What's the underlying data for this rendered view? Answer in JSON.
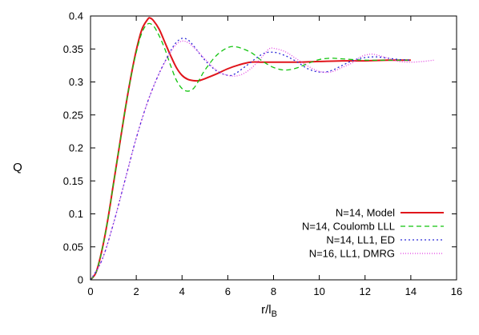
{
  "chart_data": {
    "type": "line",
    "xlabel": "r/l",
    "xlabel_sub": "B",
    "ylabel": "Q",
    "xlim": [
      0,
      16
    ],
    "ylim": [
      0,
      0.4
    ],
    "xticks": [
      0,
      2,
      4,
      6,
      8,
      10,
      12,
      14,
      16
    ],
    "yticks": [
      0,
      0.05,
      0.1,
      0.15,
      0.2,
      0.25,
      0.3,
      0.35,
      0.4
    ],
    "xtick_labels": [
      "0",
      "2",
      "4",
      "6",
      "8",
      "10",
      "12",
      "14",
      "16"
    ],
    "ytick_labels": [
      "0",
      "0.05",
      "0.1",
      "0.15",
      "0.2",
      "0.25",
      "0.3",
      "0.35",
      "0.4"
    ],
    "grid": false,
    "legend_position": "bottom-right",
    "series": [
      {
        "name": "N=14, Model",
        "color": "#e0151b",
        "dash": "solid",
        "x": [
          0,
          0.25,
          0.5,
          0.75,
          1.0,
          1.25,
          1.5,
          1.75,
          2.0,
          2.25,
          2.5,
          2.6,
          2.75,
          3.0,
          3.25,
          3.5,
          3.75,
          4.0,
          4.25,
          4.5,
          4.75,
          5.0,
          5.5,
          6.0,
          6.5,
          7.0,
          7.5,
          8.0,
          9.0,
          10.0,
          11.0,
          12.0,
          13.0,
          14.0
        ],
        "y": [
          0,
          0.012,
          0.045,
          0.09,
          0.145,
          0.2,
          0.255,
          0.305,
          0.348,
          0.38,
          0.395,
          0.397,
          0.393,
          0.38,
          0.36,
          0.34,
          0.322,
          0.31,
          0.304,
          0.302,
          0.302,
          0.305,
          0.312,
          0.32,
          0.326,
          0.33,
          0.33,
          0.33,
          0.33,
          0.331,
          0.332,
          0.332,
          0.333,
          0.333
        ]
      },
      {
        "name": "N=14, Coulomb LLL",
        "color": "#12c40f",
        "dash": "6,4",
        "x": [
          0,
          0.25,
          0.5,
          0.75,
          1.0,
          1.25,
          1.5,
          1.75,
          2.0,
          2.25,
          2.5,
          2.75,
          3.0,
          3.25,
          3.5,
          3.75,
          4.0,
          4.25,
          4.5,
          4.75,
          5.0,
          5.5,
          6.0,
          6.4,
          7.0,
          7.5,
          8.0,
          8.5,
          9.0,
          9.5,
          10.0,
          10.5,
          11.0,
          12.0,
          13.0,
          14.0
        ],
        "y": [
          0,
          0.012,
          0.045,
          0.09,
          0.145,
          0.2,
          0.255,
          0.305,
          0.345,
          0.375,
          0.388,
          0.385,
          0.37,
          0.35,
          0.325,
          0.303,
          0.29,
          0.286,
          0.29,
          0.303,
          0.318,
          0.34,
          0.352,
          0.353,
          0.345,
          0.332,
          0.322,
          0.318,
          0.321,
          0.328,
          0.334,
          0.336,
          0.335,
          0.333,
          0.333,
          0.333
        ]
      },
      {
        "name": "N=14, LL1, ED",
        "color": "#2a2ad8",
        "dash": "2,3",
        "x": [
          0,
          0.5,
          1.0,
          1.5,
          2.0,
          2.5,
          3.0,
          3.5,
          3.75,
          4.0,
          4.25,
          4.5,
          5.0,
          5.5,
          6.0,
          6.3,
          6.75,
          7.5,
          8.0,
          8.5,
          9.0,
          9.5,
          10.0,
          10.5,
          11.0,
          11.5,
          12.0,
          12.5,
          13.0,
          13.5,
          14.0
        ],
        "y": [
          0,
          0.03,
          0.085,
          0.15,
          0.215,
          0.27,
          0.313,
          0.347,
          0.36,
          0.366,
          0.364,
          0.355,
          0.333,
          0.317,
          0.31,
          0.312,
          0.323,
          0.342,
          0.345,
          0.34,
          0.331,
          0.32,
          0.315,
          0.317,
          0.325,
          0.333,
          0.337,
          0.338,
          0.336,
          0.334,
          0.333
        ]
      },
      {
        "name": "N=16, LL1, DMRG",
        "color": "#e23fe2",
        "dash": "1,2",
        "x": [
          0,
          0.5,
          1.0,
          1.5,
          2.0,
          2.5,
          3.0,
          3.5,
          3.75,
          4.0,
          4.25,
          4.5,
          5.0,
          5.5,
          6.0,
          6.5,
          7.0,
          7.5,
          7.8,
          8.0,
          8.5,
          9.0,
          9.5,
          10.0,
          10.5,
          11.0,
          11.5,
          11.8,
          12.2,
          12.5,
          13.0,
          13.5,
          14.0,
          14.5,
          15.0
        ],
        "y": [
          0,
          0.03,
          0.085,
          0.15,
          0.215,
          0.27,
          0.313,
          0.345,
          0.357,
          0.362,
          0.36,
          0.353,
          0.335,
          0.318,
          0.31,
          0.31,
          0.32,
          0.338,
          0.35,
          0.351,
          0.346,
          0.335,
          0.324,
          0.316,
          0.315,
          0.322,
          0.33,
          0.338,
          0.342,
          0.341,
          0.336,
          0.331,
          0.33,
          0.331,
          0.333
        ]
      }
    ]
  }
}
